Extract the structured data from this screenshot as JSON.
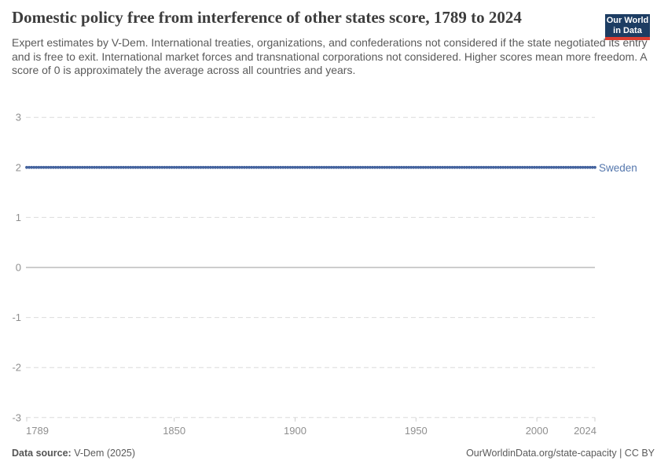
{
  "header": {
    "title": "Domestic policy free from interference of other states score, 1789 to 2024",
    "subtitle": "Expert estimates by V-Dem. International treaties, organizations, and confederations not considered if the state negotiated its entry and is free to exit. International market forces and transnational corporations not considered. Higher scores mean more freedom. A score of 0 is approximately the average across all countries and years.",
    "logo": {
      "line1": "Our World",
      "line2": "in Data",
      "bg_color": "#1d3d63",
      "bar_color": "#dc3e31"
    }
  },
  "chart_data": {
    "type": "line",
    "title": "Domestic policy free from interference of other states score, 1789 to 2024",
    "xlabel": "",
    "ylabel": "",
    "xlim": [
      1789,
      2024
    ],
    "ylim": [
      -3,
      3
    ],
    "x_ticks": [
      1789,
      1850,
      1900,
      1950,
      2000,
      2024
    ],
    "y_ticks": [
      3,
      2,
      1,
      0,
      -1,
      -2,
      -3
    ],
    "grid": "horizontal dashed gridlines; solid line at 0",
    "legend_position": "end-of-line label",
    "series": [
      {
        "name": "Sweden",
        "color": "#44639e",
        "label_color": "#5577ad",
        "marker": "dot-per-year",
        "x_start": 1789,
        "x_end": 2024,
        "constant_value": 2,
        "points": [
          [
            1789,
            2
          ],
          [
            2024,
            2
          ]
        ]
      }
    ],
    "style": {
      "grid_color": "#dcdcdc",
      "zero_line_color": "#cdcdcd",
      "tick_label_color": "#8f8f8f"
    }
  },
  "footer": {
    "data_source_label": "Data source:",
    "data_source_value": "V-Dem (2025)",
    "attribution": "OurWorldinData.org/state-capacity | CC BY"
  }
}
